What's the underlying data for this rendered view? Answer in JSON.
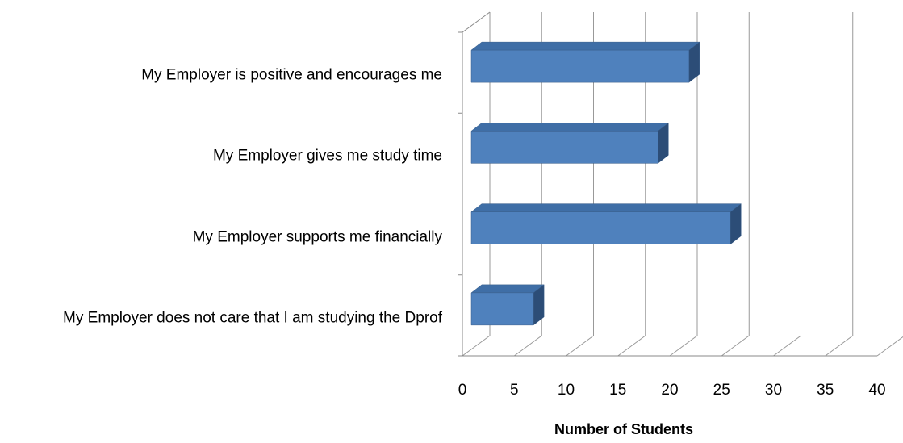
{
  "chart_data": {
    "type": "bar3d_horizontal",
    "categories": [
      "My Employer is positive and encourages me",
      "My Employer gives me study time",
      "My Employer supports me financially",
      "My Employer does not care that I am studying the Dprof"
    ],
    "values": [
      21,
      18,
      25,
      6
    ],
    "color": "#4f81bd",
    "xlim": [
      0,
      40
    ],
    "xticks": [
      0,
      5,
      10,
      15,
      20,
      25,
      30,
      35,
      40
    ],
    "xlabel": "Number of Students",
    "grid": true
  }
}
